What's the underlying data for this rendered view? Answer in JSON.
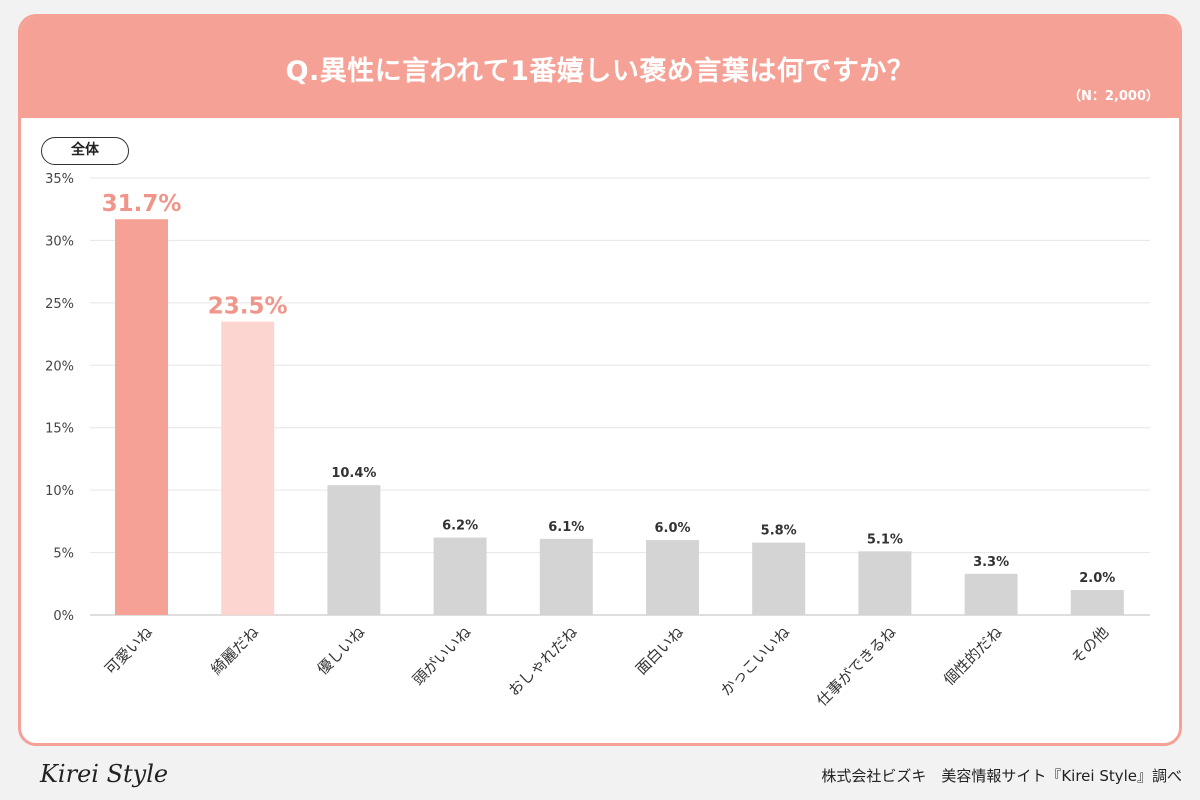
{
  "header": {
    "title": "Q.異性に言われて1番嬉しい褒め言葉は何ですか？",
    "sample": "（N：2,000）"
  },
  "segment_label": "全体",
  "footer": {
    "logo": "Kirei Style",
    "credit": "株式会社ビズキ　美容情報サイト『Kirei Style』調べ"
  },
  "colors": {
    "header": "#f5a196",
    "bar_first": "#f5a196",
    "bar_second": "#fdd5d0",
    "bar_other": "#d4d4d4",
    "highlight_label": "#f0958a"
  },
  "chart_data": {
    "type": "bar",
    "title": "Q.異性に言われて1番嬉しい褒め言葉は何ですか？",
    "categories": [
      "可愛いね",
      "綺麗だね",
      "優しいね",
      "頭がいいね",
      "おしゃれだね",
      "面白いね",
      "かっこいいね",
      "仕事ができるね",
      "個性的だね",
      "その他"
    ],
    "values": [
      31.7,
      23.5,
      10.4,
      6.2,
      6.1,
      6.0,
      5.8,
      5.1,
      3.3,
      2.0
    ],
    "value_labels": [
      "31.7%",
      "23.5%",
      "10.4%",
      "6.2%",
      "6.1%",
      "6.0%",
      "5.8%",
      "5.1%",
      "3.3%",
      "2.0%"
    ],
    "yticks": [
      "0%",
      "5%",
      "10%",
      "15%",
      "20%",
      "25%",
      "30%",
      "35%"
    ],
    "ylim": [
      0,
      35
    ],
    "xlabel": "",
    "ylabel": "",
    "grid": true,
    "legend": "none"
  }
}
